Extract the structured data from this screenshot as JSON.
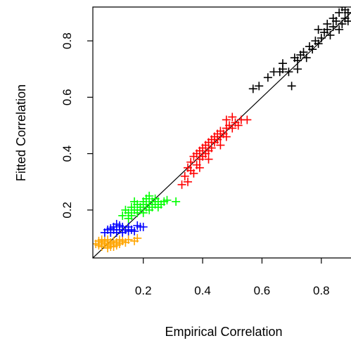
{
  "chart_data": {
    "type": "scatter",
    "xlabel": "Empirical Correlation",
    "ylabel": "Fitted Correlation",
    "xlim": [
      0.03,
      0.9
    ],
    "ylim": [
      0.03,
      0.92
    ],
    "xticks": [
      "0.2",
      "0.4",
      "0.6",
      "0.8"
    ],
    "yticks": [
      "0.2",
      "0.4",
      "0.6",
      "0.8"
    ],
    "marker": "plus",
    "reference_line": {
      "slope": 1,
      "intercept": 0,
      "color": "#000000"
    },
    "grid": false,
    "series": [
      {
        "color": "#ffa500",
        "points": [
          [
            0.04,
            0.08
          ],
          [
            0.05,
            0.075
          ],
          [
            0.05,
            0.09
          ],
          [
            0.06,
            0.07
          ],
          [
            0.06,
            0.085
          ],
          [
            0.07,
            0.08
          ],
          [
            0.07,
            0.09
          ],
          [
            0.08,
            0.075
          ],
          [
            0.08,
            0.095
          ],
          [
            0.09,
            0.08
          ],
          [
            0.09,
            0.085
          ],
          [
            0.1,
            0.07
          ],
          [
            0.1,
            0.09
          ],
          [
            0.11,
            0.085
          ],
          [
            0.12,
            0.08
          ],
          [
            0.13,
            0.09
          ],
          [
            0.14,
            0.085
          ],
          [
            0.15,
            0.095
          ],
          [
            0.17,
            0.09
          ],
          [
            0.18,
            0.1
          ],
          [
            0.06,
            0.095
          ],
          [
            0.08,
            0.065
          ],
          [
            0.11,
            0.075
          ],
          [
            0.12,
            0.095
          ],
          [
            0.09,
            0.07
          ]
        ]
      },
      {
        "color": "#0000ff",
        "points": [
          [
            0.07,
            0.12
          ],
          [
            0.08,
            0.13
          ],
          [
            0.09,
            0.12
          ],
          [
            0.1,
            0.13
          ],
          [
            0.1,
            0.14
          ],
          [
            0.11,
            0.12
          ],
          [
            0.12,
            0.13
          ],
          [
            0.12,
            0.145
          ],
          [
            0.13,
            0.12
          ],
          [
            0.14,
            0.13
          ],
          [
            0.15,
            0.14
          ],
          [
            0.16,
            0.13
          ],
          [
            0.17,
            0.125
          ],
          [
            0.18,
            0.145
          ],
          [
            0.19,
            0.14
          ],
          [
            0.2,
            0.14
          ],
          [
            0.11,
            0.15
          ],
          [
            0.13,
            0.14
          ],
          [
            0.09,
            0.135
          ],
          [
            0.15,
            0.125
          ]
        ]
      },
      {
        "color": "#00ff00",
        "points": [
          [
            0.13,
            0.18
          ],
          [
            0.14,
            0.2
          ],
          [
            0.15,
            0.19
          ],
          [
            0.16,
            0.21
          ],
          [
            0.16,
            0.18
          ],
          [
            0.17,
            0.2
          ],
          [
            0.18,
            0.22
          ],
          [
            0.18,
            0.19
          ],
          [
            0.19,
            0.21
          ],
          [
            0.19,
            0.2
          ],
          [
            0.2,
            0.22
          ],
          [
            0.2,
            0.23
          ],
          [
            0.21,
            0.21
          ],
          [
            0.21,
            0.24
          ],
          [
            0.22,
            0.22
          ],
          [
            0.22,
            0.2
          ],
          [
            0.23,
            0.23
          ],
          [
            0.23,
            0.21
          ],
          [
            0.24,
            0.22
          ],
          [
            0.24,
            0.24
          ],
          [
            0.25,
            0.23
          ],
          [
            0.26,
            0.22
          ],
          [
            0.27,
            0.23
          ],
          [
            0.28,
            0.235
          ],
          [
            0.31,
            0.23
          ],
          [
            0.15,
            0.17
          ],
          [
            0.17,
            0.23
          ],
          [
            0.2,
            0.19
          ],
          [
            0.22,
            0.25
          ],
          [
            0.25,
            0.21
          ]
        ]
      },
      {
        "color": "#ff0000",
        "points": [
          [
            0.33,
            0.29
          ],
          [
            0.34,
            0.32
          ],
          [
            0.35,
            0.35
          ],
          [
            0.35,
            0.3
          ],
          [
            0.36,
            0.37
          ],
          [
            0.36,
            0.34
          ],
          [
            0.37,
            0.39
          ],
          [
            0.37,
            0.33
          ],
          [
            0.38,
            0.4
          ],
          [
            0.38,
            0.36
          ],
          [
            0.39,
            0.41
          ],
          [
            0.39,
            0.38
          ],
          [
            0.4,
            0.42
          ],
          [
            0.4,
            0.39
          ],
          [
            0.41,
            0.4
          ],
          [
            0.41,
            0.43
          ],
          [
            0.42,
            0.44
          ],
          [
            0.42,
            0.41
          ],
          [
            0.43,
            0.45
          ],
          [
            0.43,
            0.42
          ],
          [
            0.44,
            0.46
          ],
          [
            0.44,
            0.44
          ],
          [
            0.45,
            0.47
          ],
          [
            0.45,
            0.45
          ],
          [
            0.46,
            0.48
          ],
          [
            0.46,
            0.46
          ],
          [
            0.47,
            0.47
          ],
          [
            0.48,
            0.49
          ],
          [
            0.48,
            0.46
          ],
          [
            0.49,
            0.5
          ],
          [
            0.5,
            0.49
          ],
          [
            0.51,
            0.51
          ],
          [
            0.52,
            0.5
          ],
          [
            0.5,
            0.53
          ],
          [
            0.53,
            0.52
          ],
          [
            0.48,
            0.52
          ],
          [
            0.55,
            0.52
          ],
          [
            0.42,
            0.38
          ],
          [
            0.46,
            0.43
          ],
          [
            0.39,
            0.35
          ]
        ]
      },
      {
        "color": "#000000",
        "points": [
          [
            0.57,
            0.63
          ],
          [
            0.59,
            0.64
          ],
          [
            0.62,
            0.67
          ],
          [
            0.64,
            0.69
          ],
          [
            0.66,
            0.69
          ],
          [
            0.67,
            0.72
          ],
          [
            0.67,
            0.7
          ],
          [
            0.69,
            0.69
          ],
          [
            0.7,
            0.64
          ],
          [
            0.71,
            0.74
          ],
          [
            0.72,
            0.73
          ],
          [
            0.72,
            0.7
          ],
          [
            0.73,
            0.75
          ],
          [
            0.74,
            0.76
          ],
          [
            0.75,
            0.74
          ],
          [
            0.76,
            0.78
          ],
          [
            0.77,
            0.77
          ],
          [
            0.78,
            0.8
          ],
          [
            0.79,
            0.79
          ],
          [
            0.79,
            0.84
          ],
          [
            0.8,
            0.81
          ],
          [
            0.81,
            0.83
          ],
          [
            0.82,
            0.84
          ],
          [
            0.82,
            0.86
          ],
          [
            0.83,
            0.82
          ],
          [
            0.84,
            0.85
          ],
          [
            0.84,
            0.88
          ],
          [
            0.85,
            0.87
          ],
          [
            0.86,
            0.84
          ],
          [
            0.86,
            0.9
          ],
          [
            0.87,
            0.86
          ],
          [
            0.88,
            0.88
          ],
          [
            0.88,
            0.91
          ],
          [
            0.89,
            0.87
          ],
          [
            0.89,
            0.9
          ],
          [
            0.87,
            0.92
          ]
        ]
      }
    ]
  }
}
